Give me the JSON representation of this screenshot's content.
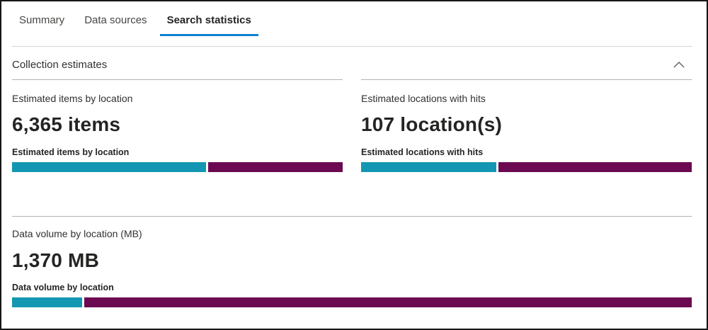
{
  "tabs": [
    {
      "label": "Summary",
      "active": false
    },
    {
      "label": "Data sources",
      "active": false
    },
    {
      "label": "Search statistics",
      "active": true
    }
  ],
  "section": {
    "title": "Collection estimates",
    "collapse_icon": "chevron-up-icon"
  },
  "colors": {
    "tab_underline": "#0f80d4",
    "bar_teal": "#1397b2",
    "bar_magenta": "#6b0a51"
  },
  "metrics": {
    "items": {
      "label": "Estimated items by location",
      "value": "6,365 items",
      "bar_label": "Estimated items by location",
      "teal_width": "58.6%"
    },
    "locations": {
      "label": "Estimated locations with hits",
      "value": "107 location(s)",
      "bar_label": "Estimated locations with hits",
      "teal_width": "40.8%"
    },
    "volume": {
      "label": "Data volume by location (MB)",
      "value": "1,370 MB",
      "bar_label": "Data volume by location",
      "teal_width": "10.3%"
    }
  },
  "chart_data": [
    {
      "type": "bar",
      "title": "Estimated items by location",
      "total": "6,365 items",
      "series": [
        {
          "name": "segment-teal",
          "fraction": 0.586
        },
        {
          "name": "segment-magenta",
          "fraction": 0.414
        }
      ],
      "legend_position": "none",
      "grid": false
    },
    {
      "type": "bar",
      "title": "Estimated locations with hits",
      "total": "107 location(s)",
      "series": [
        {
          "name": "segment-teal",
          "fraction": 0.408
        },
        {
          "name": "segment-magenta",
          "fraction": 0.592
        }
      ],
      "legend_position": "none",
      "grid": false
    },
    {
      "type": "bar",
      "title": "Data volume by location",
      "total": "1,370 MB",
      "series": [
        {
          "name": "segment-teal",
          "fraction": 0.103
        },
        {
          "name": "segment-magenta",
          "fraction": 0.897
        }
      ],
      "legend_position": "none",
      "grid": false
    }
  ]
}
